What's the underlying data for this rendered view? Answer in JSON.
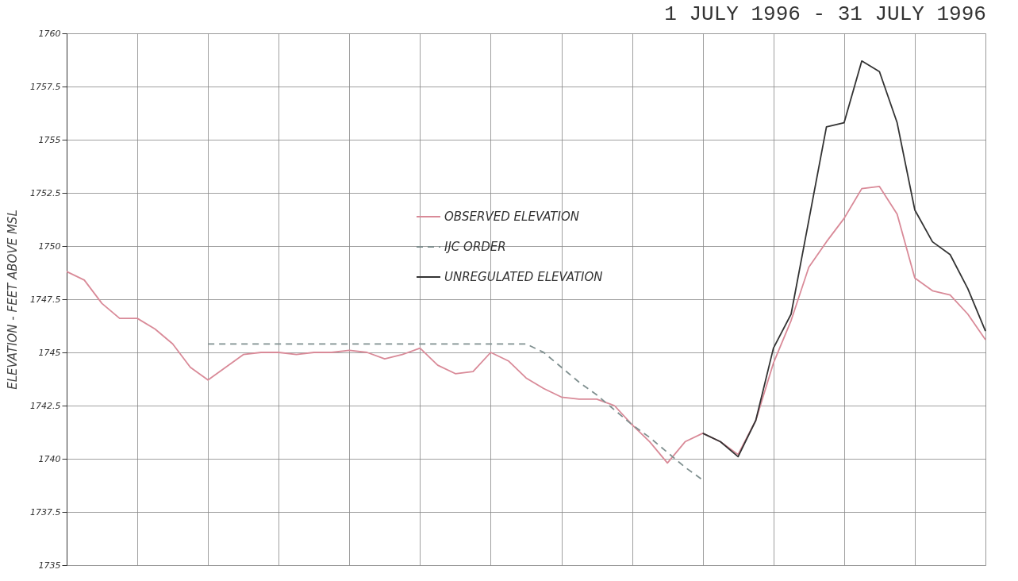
{
  "chart_data": {
    "type": "line",
    "title": "1 JULY 1996 - 31 JULY 1996",
    "ylabel": "ELEVATION - FEET ABOVE MSL",
    "categories": [
      null,
      null,
      null,
      null,
      null,
      null,
      null,
      null,
      null,
      null,
      null,
      null,
      null,
      null,
      null,
      null,
      null,
      null,
      null,
      null,
      null,
      null,
      null,
      null,
      null,
      null,
      null,
      null,
      null,
      null,
      null,
      null,
      null,
      null,
      null,
      null,
      null,
      null,
      null,
      null,
      null,
      null,
      null,
      null,
      null,
      null,
      null,
      null,
      null,
      null,
      null,
      null,
      null
    ],
    "ylim": [
      1735,
      1760
    ],
    "yticks": [
      1735,
      1737.5,
      1740,
      1742.5,
      1745,
      1747.5,
      1750,
      1752.5,
      1755,
      1757.5,
      1760
    ],
    "grid": true,
    "legend": "center",
    "series": [
      {
        "name": "OBSERVED ELEVATION",
        "color": "#d98a98",
        "line_style": "solid",
        "values": [
          1748.8,
          1748.4,
          1747.3,
          1746.6,
          1746.6,
          1746.1,
          1745.4,
          1744.3,
          1743.7,
          1744.3,
          1744.9,
          1745.0,
          1745.0,
          1744.9,
          1745.0,
          1745.0,
          1745.1,
          1745.0,
          1744.7,
          1744.9,
          1745.2,
          1744.4,
          1744.0,
          1744.1,
          1745.0,
          1744.6,
          1743.8,
          1743.3,
          1742.9,
          1742.8,
          1742.8,
          1742.5,
          1741.6,
          1740.8,
          1739.8,
          1740.8,
          1741.2,
          1740.8,
          1740.2,
          1741.8,
          1744.5,
          1746.5,
          1749.0,
          1750.2,
          1751.3,
          1752.7,
          1752.8,
          1751.5,
          1748.5,
          1747.9,
          1747.7,
          1746.8,
          1745.6
        ]
      },
      {
        "name": "IJC ORDER",
        "color": "#7f8f8f",
        "line_style": "dashed",
        "values": [
          null,
          null,
          null,
          null,
          null,
          null,
          null,
          null,
          1745.4,
          1745.4,
          1745.4,
          1745.4,
          1745.4,
          1745.4,
          1745.4,
          1745.4,
          1745.4,
          1745.4,
          1745.4,
          1745.4,
          1745.4,
          1745.4,
          1745.4,
          1745.4,
          1745.4,
          1745.4,
          1745.4,
          1745.0,
          1744.3,
          1743.6,
          1743.0,
          1742.3,
          1741.6,
          1741.0,
          1740.3,
          1739.6,
          1739.0,
          null,
          null,
          null,
          null,
          null,
          null,
          null,
          null,
          null,
          null,
          null,
          null,
          null,
          null,
          null,
          null
        ]
      },
      {
        "name": "UNREGULATED ELEVATION",
        "color": "#333333",
        "line_style": "solid",
        "values": [
          null,
          null,
          null,
          null,
          null,
          null,
          null,
          null,
          null,
          null,
          null,
          null,
          null,
          null,
          null,
          null,
          null,
          null,
          null,
          null,
          null,
          null,
          null,
          null,
          null,
          null,
          null,
          null,
          null,
          null,
          null,
          null,
          null,
          null,
          null,
          null,
          1741.2,
          1740.8,
          1740.1,
          1741.8,
          1745.2,
          1746.8,
          1751.2,
          1755.6,
          1755.8,
          1758.7,
          1758.2,
          1755.8,
          1751.7,
          1750.2,
          1749.6,
          1748.0,
          1746.0
        ]
      }
    ]
  }
}
